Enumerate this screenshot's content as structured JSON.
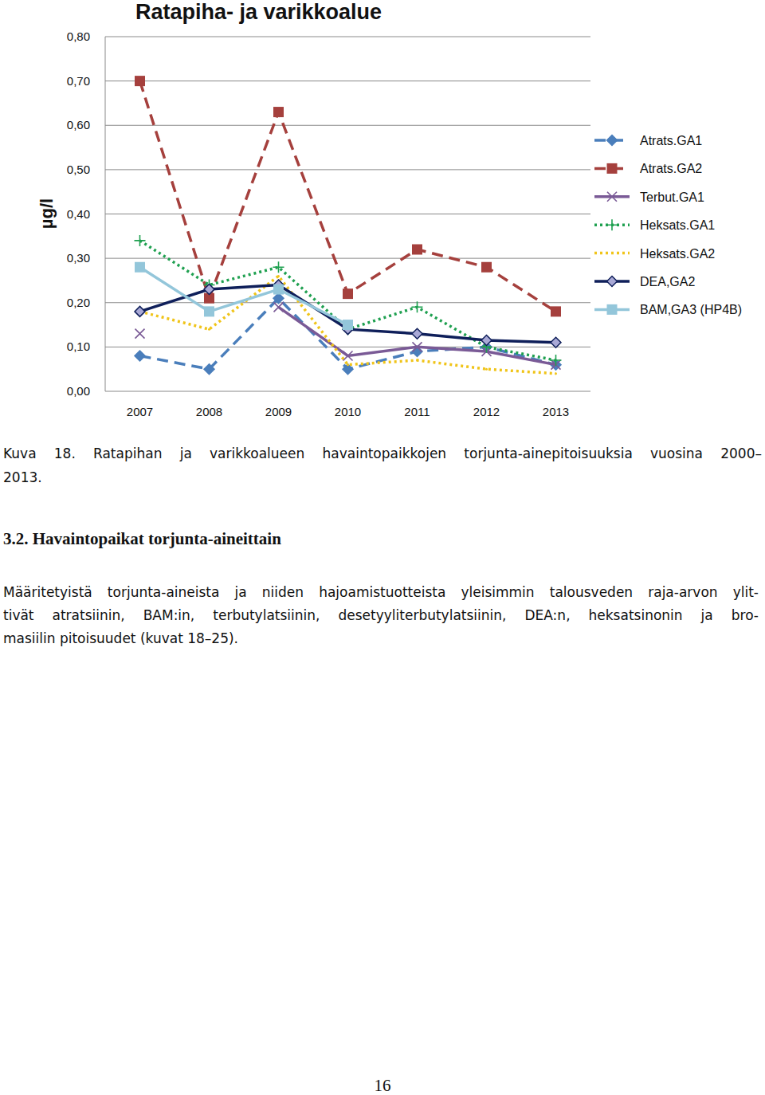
{
  "chart_data": {
    "type": "line",
    "title": "Ratapiha- ja varikkoalue",
    "y_label": "µg/l",
    "categories": [
      "2007",
      "2008",
      "2009",
      "2010",
      "2011",
      "2012",
      "2013"
    ],
    "ylim": [
      0,
      0.8
    ],
    "yticks": [
      {
        "value": 0,
        "label": "0,00"
      },
      {
        "value": 0.1,
        "label": "0,10"
      },
      {
        "value": 0.2,
        "label": "0,20"
      },
      {
        "value": 0.3,
        "label": "0,30"
      },
      {
        "value": 0.4,
        "label": "0,40"
      },
      {
        "value": 0.5,
        "label": "0,50"
      },
      {
        "value": 0.6,
        "label": "0,60"
      },
      {
        "value": 0.7,
        "label": "0,70"
      },
      {
        "value": 0.8,
        "label": "0,80"
      }
    ],
    "grid": true,
    "legend": "right",
    "series": [
      {
        "name": "Atrats.GA1",
        "color": "#4a7ebb",
        "marker": "diamond",
        "line_style": "dashed",
        "values": [
          0.08,
          0.05,
          0.21,
          0.05,
          0.09,
          0.1,
          0.06
        ]
      },
      {
        "name": "Atrats.GA2",
        "color": "#a5403d",
        "marker": "square",
        "line_style": "dashed",
        "values": [
          0.7,
          0.21,
          0.63,
          0.22,
          0.32,
          0.28,
          0.18
        ]
      },
      {
        "name": "Terbut.GA1",
        "color": "#7a5a96",
        "marker": "x",
        "line_style": "solid",
        "values": [
          0.13,
          null,
          0.19,
          0.08,
          0.1,
          0.09,
          0.06
        ]
      },
      {
        "name": "Heksats.GA1",
        "color": "#1fa050",
        "marker": "plus",
        "line_style": "dotted",
        "values": [
          0.34,
          0.24,
          0.28,
          0.14,
          0.19,
          0.1,
          0.07
        ]
      },
      {
        "name": "Heksats.GA2",
        "color": "#f0c419",
        "marker": "none",
        "line_style": "dotted",
        "values": [
          0.18,
          0.14,
          0.26,
          0.06,
          0.07,
          0.05,
          0.04
        ]
      },
      {
        "name": "DEA,GA2",
        "color": "#0f1f5a",
        "marker": "diamond",
        "line_style": "solid",
        "values": [
          0.18,
          0.23,
          0.24,
          0.14,
          0.13,
          0.115,
          0.11
        ]
      },
      {
        "name": "BAM,GA3 (HP4B)",
        "color": "#93c6da",
        "marker": "square",
        "line_style": "solid",
        "values": [
          0.28,
          0.18,
          0.23,
          0.15,
          null,
          null,
          null
        ]
      }
    ]
  },
  "caption": [
    "Kuva 18. Ratapihan ja varikkoalueen havaintopaikkojen torjunta-ainepitoisuuksia vuosina 2000–",
    "2013."
  ],
  "section_heading": "3.2. Havaintopaikat torjunta-aineittain",
  "paragraph": [
    "Määritetyistä torjunta-aineista ja niiden hajoamistuotteista yleisimmin talousveden raja-arvon ylit-",
    "tivät atratsiinin, BAM:in, terbutylatsiinin, desetyyliterbutylatsiinin, DEA:n, heksatsinonin ja bro-",
    "masiilin pitoisuudet (kuvat 18–25)."
  ],
  "page_number": "16"
}
